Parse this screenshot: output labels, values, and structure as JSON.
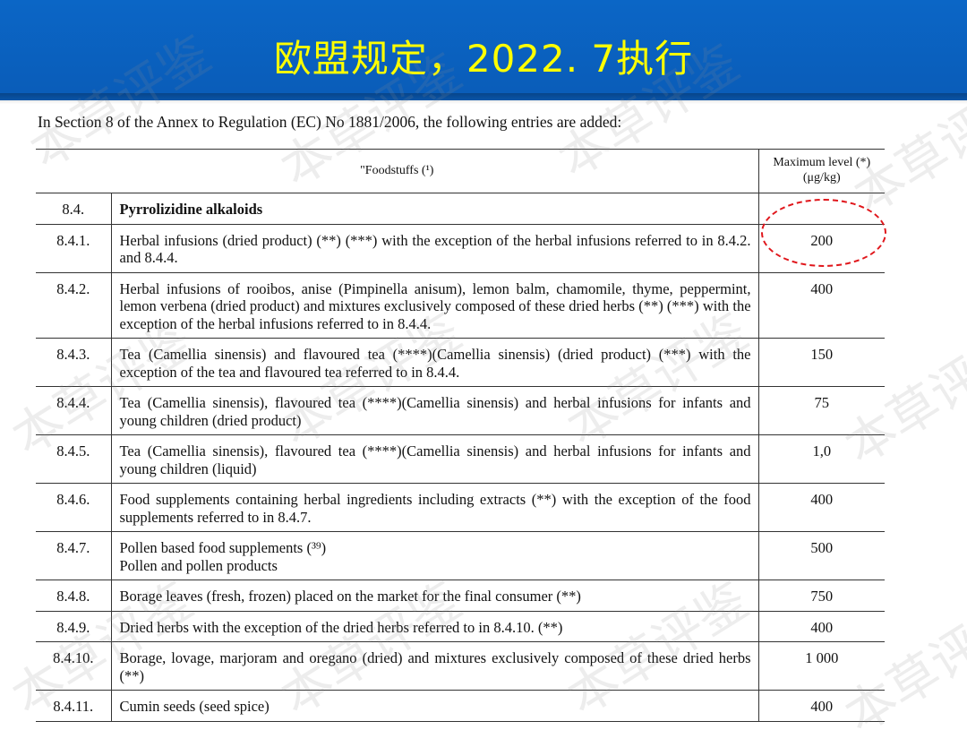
{
  "slide": {
    "title": "欧盟规定，2022. 7执行",
    "intro": "In Section 8 of the Annex to Regulation (EC) No 1881/2006, the following entries are added:"
  },
  "table": {
    "header": {
      "foodstuffs": "\"Foodstuffs (¹)",
      "max_level": "Maximum level (*)",
      "unit": "(μg/kg)"
    },
    "rows": [
      {
        "code": "8.4.",
        "desc": "Pyrrolizidine alkaloids",
        "value": "",
        "bold": true
      },
      {
        "code": "8.4.1.",
        "desc": "Herbal infusions (dried product) (**) (***) with the exception of the herbal infusions referred to in 8.4.2. and 8.4.4.",
        "value": "200"
      },
      {
        "code": "8.4.2.",
        "desc": "Herbal infusions of rooibos, anise (Pimpinella anisum), lemon balm, chamomile, thyme, peppermint, lemon verbena (dried product) and mixtures exclusively composed of these dried herbs (**) (***) with the exception of the herbal infusions referred to in 8.4.4.",
        "value": "400"
      },
      {
        "code": "8.4.3.",
        "desc": "Tea (Camellia sinensis) and flavoured tea (****)(Camellia sinensis) (dried product) (***) with the exception of the tea and flavoured tea referred to in 8.4.4.",
        "value": "150"
      },
      {
        "code": "8.4.4.",
        "desc": "Tea (Camellia sinensis), flavoured tea (****)(Camellia sinensis) and herbal infusions for infants and young children (dried product)",
        "value": "75"
      },
      {
        "code": "8.4.5.",
        "desc": "Tea (Camellia sinensis), flavoured tea (****)(Camellia sinensis) and herbal infusions for infants and young children (liquid)",
        "value": "1,0"
      },
      {
        "code": "8.4.6.",
        "desc": "Food supplements containing herbal ingredients including extracts (**) with the exception of the food supplements referred to in 8.4.7.",
        "value": "400"
      },
      {
        "code": "8.4.7.",
        "desc": "Pollen based food supplements (³⁹)\nPollen and pollen products",
        "value": "500"
      },
      {
        "code": "8.4.8.",
        "desc": "Borage leaves (fresh, frozen) placed on the market for the final consumer (**)",
        "value": "750"
      },
      {
        "code": "8.4.9.",
        "desc": "Dried herbs with the exception of the dried herbs referred to in 8.4.10. (**)",
        "value": "400"
      },
      {
        "code": "8.4.10.",
        "desc": "Borage, lovage, marjoram and oregano (dried) and mixtures exclusively composed of these dried herbs (**)",
        "value": "1 000"
      },
      {
        "code": "8.4.11.",
        "desc": "Cumin seeds (seed spice)",
        "value": "400"
      }
    ]
  },
  "watermark": {
    "text": "本草评鉴",
    "color": "#8c8c8c"
  },
  "highlight": {
    "color": "#e0161b",
    "row_code": "8.4.1."
  }
}
